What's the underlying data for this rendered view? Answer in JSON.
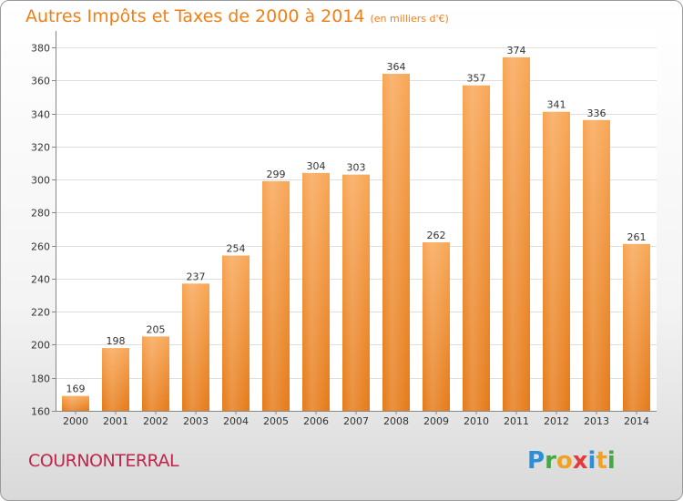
{
  "title": {
    "main": "Autres Impôts et Taxes de 2000 à 2014",
    "sub": "(en milliers d'€)"
  },
  "commune": "COURNONTERRAL",
  "logo": {
    "text": "Proxiti"
  },
  "colors": {
    "title": "#f07f18",
    "bar_light": "#f8a655",
    "bar_dark": "#e57a17",
    "commune": "#c0264b"
  },
  "chart_data": {
    "type": "bar",
    "title": "Autres Impôts et Taxes de 2000 à 2014",
    "subtitle": "(en milliers d'€)",
    "categories": [
      "2000",
      "2001",
      "2002",
      "2003",
      "2004",
      "2005",
      "2006",
      "2007",
      "2008",
      "2009",
      "2010",
      "2011",
      "2012",
      "2013",
      "2014"
    ],
    "values": [
      169,
      198,
      205,
      237,
      254,
      299,
      304,
      303,
      364,
      262,
      357,
      374,
      341,
      336,
      261
    ],
    "xlabel": "",
    "ylabel": "",
    "ylim": [
      160,
      380
    ],
    "yticks": [
      160,
      180,
      200,
      220,
      240,
      260,
      280,
      300,
      320,
      340,
      360,
      380
    ],
    "grid": true,
    "data_labels": true
  }
}
